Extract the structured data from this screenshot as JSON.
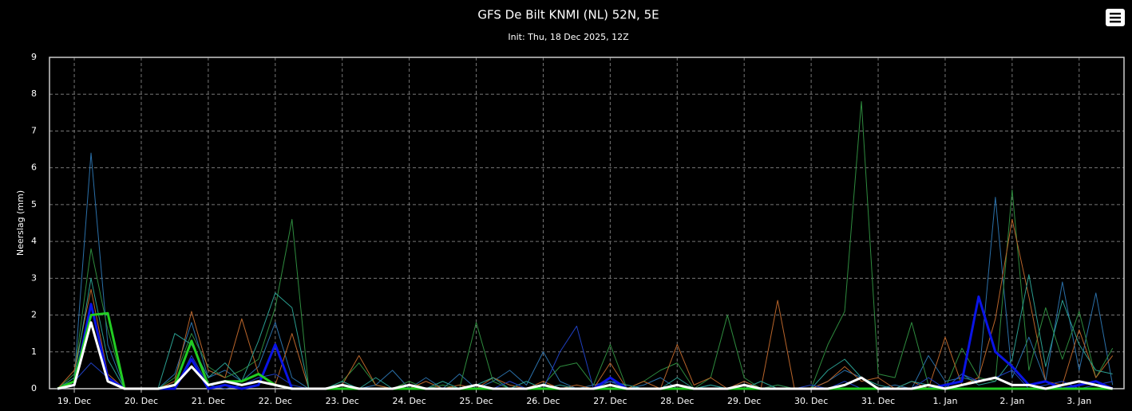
{
  "chart_data": {
    "type": "line",
    "title": "GFS De Bilt KNMI (NL) 52N, 5E",
    "subtitle": "Init: Thu, 18 Dec 2025, 12Z",
    "y_label": "Neerslag (mm)",
    "xlim": [
      -0.37,
      15.67
    ],
    "xticks": [
      {
        "value": 0,
        "label": "19. Dec"
      },
      {
        "value": 1,
        "label": "20. Dec"
      },
      {
        "value": 2,
        "label": "21. Dec"
      },
      {
        "value": 3,
        "label": "22. Dec"
      },
      {
        "value": 4,
        "label": "23. Dec"
      },
      {
        "value": 5,
        "label": "24. Dec"
      },
      {
        "value": 6,
        "label": "25. Dec"
      },
      {
        "value": 7,
        "label": "26. Dec"
      },
      {
        "value": 8,
        "label": "27. Dec"
      },
      {
        "value": 9,
        "label": "28. Dec"
      },
      {
        "value": 10,
        "label": "29. Dec"
      },
      {
        "value": 11,
        "label": "30. Dec"
      },
      {
        "value": 12,
        "label": "31. Dec"
      },
      {
        "value": 13,
        "label": "1. Jan"
      },
      {
        "value": 14,
        "label": "2. Jan"
      },
      {
        "value": 15,
        "label": "3. Jan"
      }
    ],
    "ylim": [
      0,
      9
    ],
    "yticks": [
      0,
      1,
      2,
      3,
      4,
      5,
      6,
      7,
      8,
      9
    ],
    "grid": true,
    "x": [
      -0.25,
      0,
      0.25,
      0.5,
      0.75,
      1,
      1.25,
      1.5,
      1.75,
      2,
      2.25,
      2.5,
      2.75,
      3,
      3.25,
      3.5,
      3.75,
      4,
      4.25,
      4.5,
      4.75,
      5,
      5.25,
      5.5,
      5.75,
      6,
      6.25,
      6.5,
      6.75,
      7,
      7.25,
      7.5,
      7.75,
      8,
      8.25,
      8.5,
      8.75,
      9,
      9.25,
      9.5,
      9.75,
      10,
      10.25,
      10.5,
      10.75,
      11,
      11.25,
      11.5,
      11.75,
      12,
      12.25,
      12.5,
      12.75,
      13,
      13.25,
      13.5,
      13.75,
      14,
      14.25,
      14.5,
      14.75,
      15,
      15.25,
      15.5
    ],
    "series": [
      {
        "color": "#2a6fa8",
        "line_width": 1,
        "values": [
          0,
          0.3,
          6.4,
          1.2,
          0,
          0,
          0,
          0.4,
          1.8,
          0.3,
          0.5,
          0.2,
          0.6,
          1.8,
          0.3,
          0,
          0,
          0.1,
          0,
          0.1,
          0.5,
          0,
          0.3,
          0,
          0.4,
          0,
          0.2,
          0.5,
          0.1,
          1.0,
          0.2,
          0,
          0.1,
          0.2,
          0,
          0.1,
          0.3,
          0,
          0,
          0.1,
          0,
          0.2,
          0,
          0.1,
          0,
          0,
          0.2,
          0.5,
          0.3,
          0,
          0.1,
          0,
          0.9,
          0.2,
          0.3,
          0.2,
          5.2,
          0.3,
          1.4,
          0.2,
          2.9,
          0.5,
          2.6,
          0.1
        ]
      },
      {
        "color": "#2e8b3e",
        "line_width": 1,
        "values": [
          0,
          0.4,
          3.8,
          1.6,
          0,
          0,
          0,
          0.3,
          1.5,
          0.6,
          0.3,
          0.5,
          0.8,
          2.2,
          4.6,
          0,
          0,
          0.2,
          0.7,
          0.1,
          0,
          0.2,
          0,
          0.1,
          0,
          1.8,
          0.2,
          0,
          0,
          0.1,
          0.6,
          0.7,
          0.1,
          1.2,
          0,
          0.2,
          0.5,
          0.7,
          0,
          0.3,
          2.0,
          0.3,
          0,
          0.1,
          0,
          0,
          1.2,
          2.1,
          7.8,
          0.4,
          0.3,
          1.8,
          0.1,
          0,
          1.1,
          0.3,
          0.2,
          5.4,
          0.5,
          2.2,
          0.8,
          2.1,
          0.3,
          1.1
        ]
      },
      {
        "color": "#b8642a",
        "line_width": 1,
        "values": [
          0,
          0.5,
          2.7,
          0.4,
          0,
          0,
          0,
          0.2,
          2.1,
          0.5,
          0.3,
          1.9,
          0.4,
          0.1,
          1.5,
          0,
          0,
          0.1,
          0.9,
          0.1,
          0,
          0,
          0.2,
          0,
          0.1,
          0,
          0.3,
          0.1,
          0,
          0.2,
          0,
          0.1,
          0,
          0.7,
          0,
          0.2,
          0,
          1.2,
          0.1,
          0.3,
          0,
          0.2,
          0,
          2.4,
          0,
          0,
          0.2,
          0.6,
          0.2,
          0.3,
          0,
          0.2,
          0,
          1.4,
          0.1,
          0.3,
          1.9,
          4.6,
          2.5,
          0.2,
          0.1,
          1.6,
          0.3,
          0.9
        ]
      },
      {
        "color": "#2a9d8f",
        "line_width": 1,
        "values": [
          0,
          0.3,
          3.0,
          0.8,
          0,
          0,
          0,
          1.5,
          1.2,
          0.3,
          0.7,
          0.2,
          1.3,
          2.6,
          2.2,
          0,
          0,
          0.2,
          0,
          0.3,
          0,
          0.1,
          0,
          0.2,
          0,
          0.1,
          0.3,
          0,
          0.2,
          0,
          0.1,
          0,
          0,
          0.2,
          0.1,
          0,
          0,
          0.3,
          0,
          0.1,
          0,
          0,
          0.2,
          0,
          0,
          0,
          0.5,
          0.8,
          0.3,
          0.1,
          0,
          0.2,
          0.1,
          0,
          0.4,
          0.1,
          0.2,
          0.8,
          3.1,
          0.6,
          2.4,
          1.2,
          0.5,
          0.4
        ]
      },
      {
        "color": "#1f3fbf",
        "line_width": 1,
        "values": [
          0,
          0.2,
          0.7,
          0.3,
          0,
          0,
          0,
          0,
          0.9,
          0.1,
          0,
          0.1,
          0.3,
          0.4,
          0.1,
          0,
          0,
          0,
          0,
          0,
          0,
          0.1,
          0,
          0,
          0,
          0,
          0,
          0.2,
          0,
          0,
          1.0,
          1.7,
          0,
          0.2,
          0,
          0,
          0,
          0,
          0,
          0,
          0,
          0,
          0,
          0,
          0,
          0.1,
          0,
          0.2,
          0,
          0,
          0,
          0,
          0.3,
          0,
          0.4,
          0.2,
          0.3,
          0.5,
          0,
          0.1,
          0.2,
          0,
          0.1,
          0.2
        ]
      },
      {
        "color": "#0a14e6",
        "line_width": 3,
        "values": [
          0,
          0.1,
          2.3,
          0.3,
          0,
          0,
          0,
          0,
          0.8,
          0,
          0.1,
          0,
          0.1,
          1.2,
          0,
          0,
          0,
          0,
          0,
          0,
          0,
          0,
          0,
          0,
          0,
          0,
          0,
          0,
          0,
          0,
          0,
          0,
          0,
          0.3,
          0,
          0,
          0,
          0,
          0,
          0,
          0,
          0,
          0,
          0,
          0,
          0,
          0,
          0,
          0,
          0,
          0,
          0,
          0,
          0.1,
          0.2,
          2.5,
          1.0,
          0.6,
          0.1,
          0.2,
          0,
          0.1,
          0.2,
          0
        ]
      },
      {
        "color": "#22cc22",
        "line_width": 3,
        "values": [
          0,
          0.2,
          2.0,
          2.05,
          0,
          0,
          0,
          0.1,
          1.3,
          0.1,
          0.2,
          0.2,
          0.4,
          0.1,
          0,
          0,
          0,
          0,
          0,
          0,
          0,
          0,
          0,
          0,
          0,
          0,
          0,
          0,
          0,
          0,
          0,
          0,
          0,
          0,
          0,
          0,
          0,
          0,
          0,
          0,
          0,
          0,
          0,
          0,
          0,
          0,
          0,
          0,
          0,
          0,
          0,
          0,
          0,
          0,
          0,
          0,
          0,
          0,
          0,
          0,
          0,
          0,
          0,
          0
        ]
      },
      {
        "color": "#ffffff",
        "line_width": 3,
        "values": [
          0,
          0.1,
          1.8,
          0.2,
          0,
          0,
          0,
          0.1,
          0.6,
          0.1,
          0.2,
          0.1,
          0.2,
          0.1,
          0,
          0,
          0,
          0.1,
          0,
          0,
          0,
          0.1,
          0,
          0,
          0,
          0.1,
          0,
          0,
          0,
          0.1,
          0,
          0,
          0,
          0.1,
          0,
          0,
          0,
          0.1,
          0,
          0,
          0,
          0.1,
          0,
          0,
          0,
          0,
          0,
          0.1,
          0.3,
          0,
          0,
          0,
          0.1,
          0,
          0.1,
          0.2,
          0.3,
          0.1,
          0.1,
          0,
          0.1,
          0.2,
          0.1,
          0
        ]
      }
    ]
  }
}
